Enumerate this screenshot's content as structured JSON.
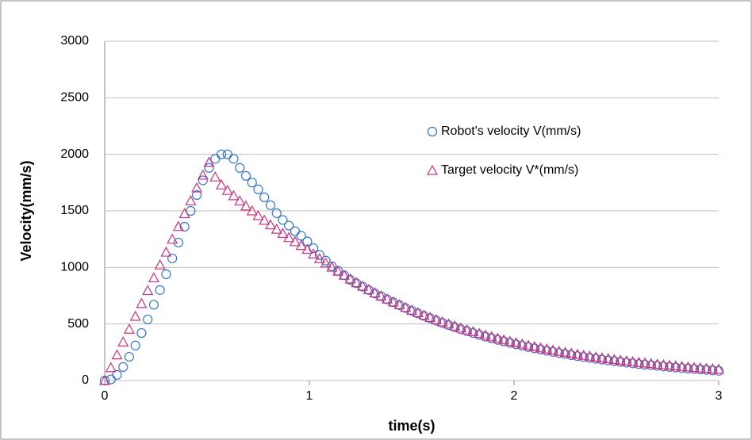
{
  "chart_data": {
    "type": "scatter",
    "x_label": "time(s)",
    "y_label": "Velocity(mm/s)",
    "x": [
      0,
      0.03,
      0.06,
      0.09,
      0.12,
      0.15,
      0.18,
      0.21,
      0.24,
      0.27,
      0.3,
      0.33,
      0.36,
      0.39,
      0.42,
      0.45,
      0.48,
      0.51,
      0.54,
      0.57,
      0.6,
      0.63,
      0.66,
      0.69,
      0.72,
      0.75,
      0.78,
      0.81,
      0.84,
      0.87,
      0.9,
      0.93,
      0.96,
      0.99,
      1.02,
      1.05,
      1.08,
      1.11,
      1.14,
      1.17,
      1.2,
      1.23,
      1.26,
      1.29,
      1.32,
      1.35,
      1.38,
      1.41,
      1.44,
      1.47,
      1.5,
      1.53,
      1.56,
      1.59,
      1.62,
      1.65,
      1.68,
      1.71,
      1.74,
      1.77,
      1.8,
      1.83,
      1.86,
      1.89,
      1.92,
      1.95,
      1.98,
      2.01,
      2.04,
      2.07,
      2.1,
      2.13,
      2.16,
      2.19,
      2.22,
      2.25,
      2.28,
      2.31,
      2.34,
      2.37,
      2.4,
      2.43,
      2.46,
      2.49,
      2.52,
      2.55,
      2.58,
      2.61,
      2.64,
      2.67,
      2.7,
      2.73,
      2.76,
      2.79,
      2.82,
      2.85,
      2.88,
      2.91,
      2.94,
      2.97,
      3.0
    ],
    "series": [
      {
        "name": "Robot's velocity V(mm/s)",
        "color": "#2e75d6",
        "marker": "circle",
        "values": [
          0,
          10,
          50,
          120,
          210,
          310,
          420,
          540,
          670,
          800,
          940,
          1080,
          1220,
          1360,
          1500,
          1640,
          1770,
          1880,
          1960,
          2000,
          2000,
          1960,
          1880,
          1810,
          1750,
          1690,
          1620,
          1550,
          1480,
          1420,
          1370,
          1320,
          1280,
          1230,
          1170,
          1110,
          1060,
          1010,
          970,
          930,
          890,
          860,
          830,
          800,
          770,
          745,
          718,
          692,
          666,
          641,
          617,
          594,
          572,
          551,
          530,
          510,
          491,
          472,
          454,
          437,
          420,
          404,
          389,
          374,
          360,
          346,
          333,
          320,
          308,
          296,
          285,
          274,
          263,
          253,
          243,
          234,
          225,
          216,
          208,
          200,
          192,
          185,
          178,
          171,
          164,
          158,
          152,
          146,
          140,
          135,
          130,
          125,
          120,
          115,
          110,
          106,
          102,
          98,
          94,
          90,
          86
        ]
      },
      {
        "name": "Target velocity V*(mm/s)",
        "color": "#d6307a",
        "marker": "triangle",
        "values": [
          0,
          114,
          227,
          341,
          454,
          568,
          681,
          795,
          908,
          1022,
          1135,
          1249,
          1362,
          1476,
          1589,
          1703,
          1816,
          1930,
          1800,
          1730,
          1681,
          1634,
          1588,
          1543,
          1500,
          1458,
          1417,
          1377,
          1338,
          1300,
          1264,
          1228,
          1194,
          1160,
          1118,
          1078,
          1039,
          1002,
          966,
          931,
          898,
          865,
          834,
          804,
          775,
          748,
          721,
          695,
          670,
          646,
          622,
          600,
          578,
          558,
          538,
          518,
          500,
          482,
          464,
          448,
          432,
          416,
          401,
          387,
          373,
          359,
          346,
          334,
          322,
          310,
          299,
          288,
          278,
          268,
          258,
          249,
          240,
          231,
          223,
          215,
          207,
          200,
          193,
          186,
          179,
          173,
          166,
          160,
          155,
          149,
          144,
          139,
          134,
          129,
          124,
          120,
          115,
          111,
          107,
          103,
          100
        ]
      }
    ],
    "xlim": [
      0,
      3
    ],
    "xticks": [
      0,
      1,
      2,
      3
    ],
    "ylim": [
      0,
      3000
    ],
    "yticks": [
      0,
      500,
      1000,
      1500,
      2000,
      2500,
      3000
    ],
    "grid": true
  }
}
